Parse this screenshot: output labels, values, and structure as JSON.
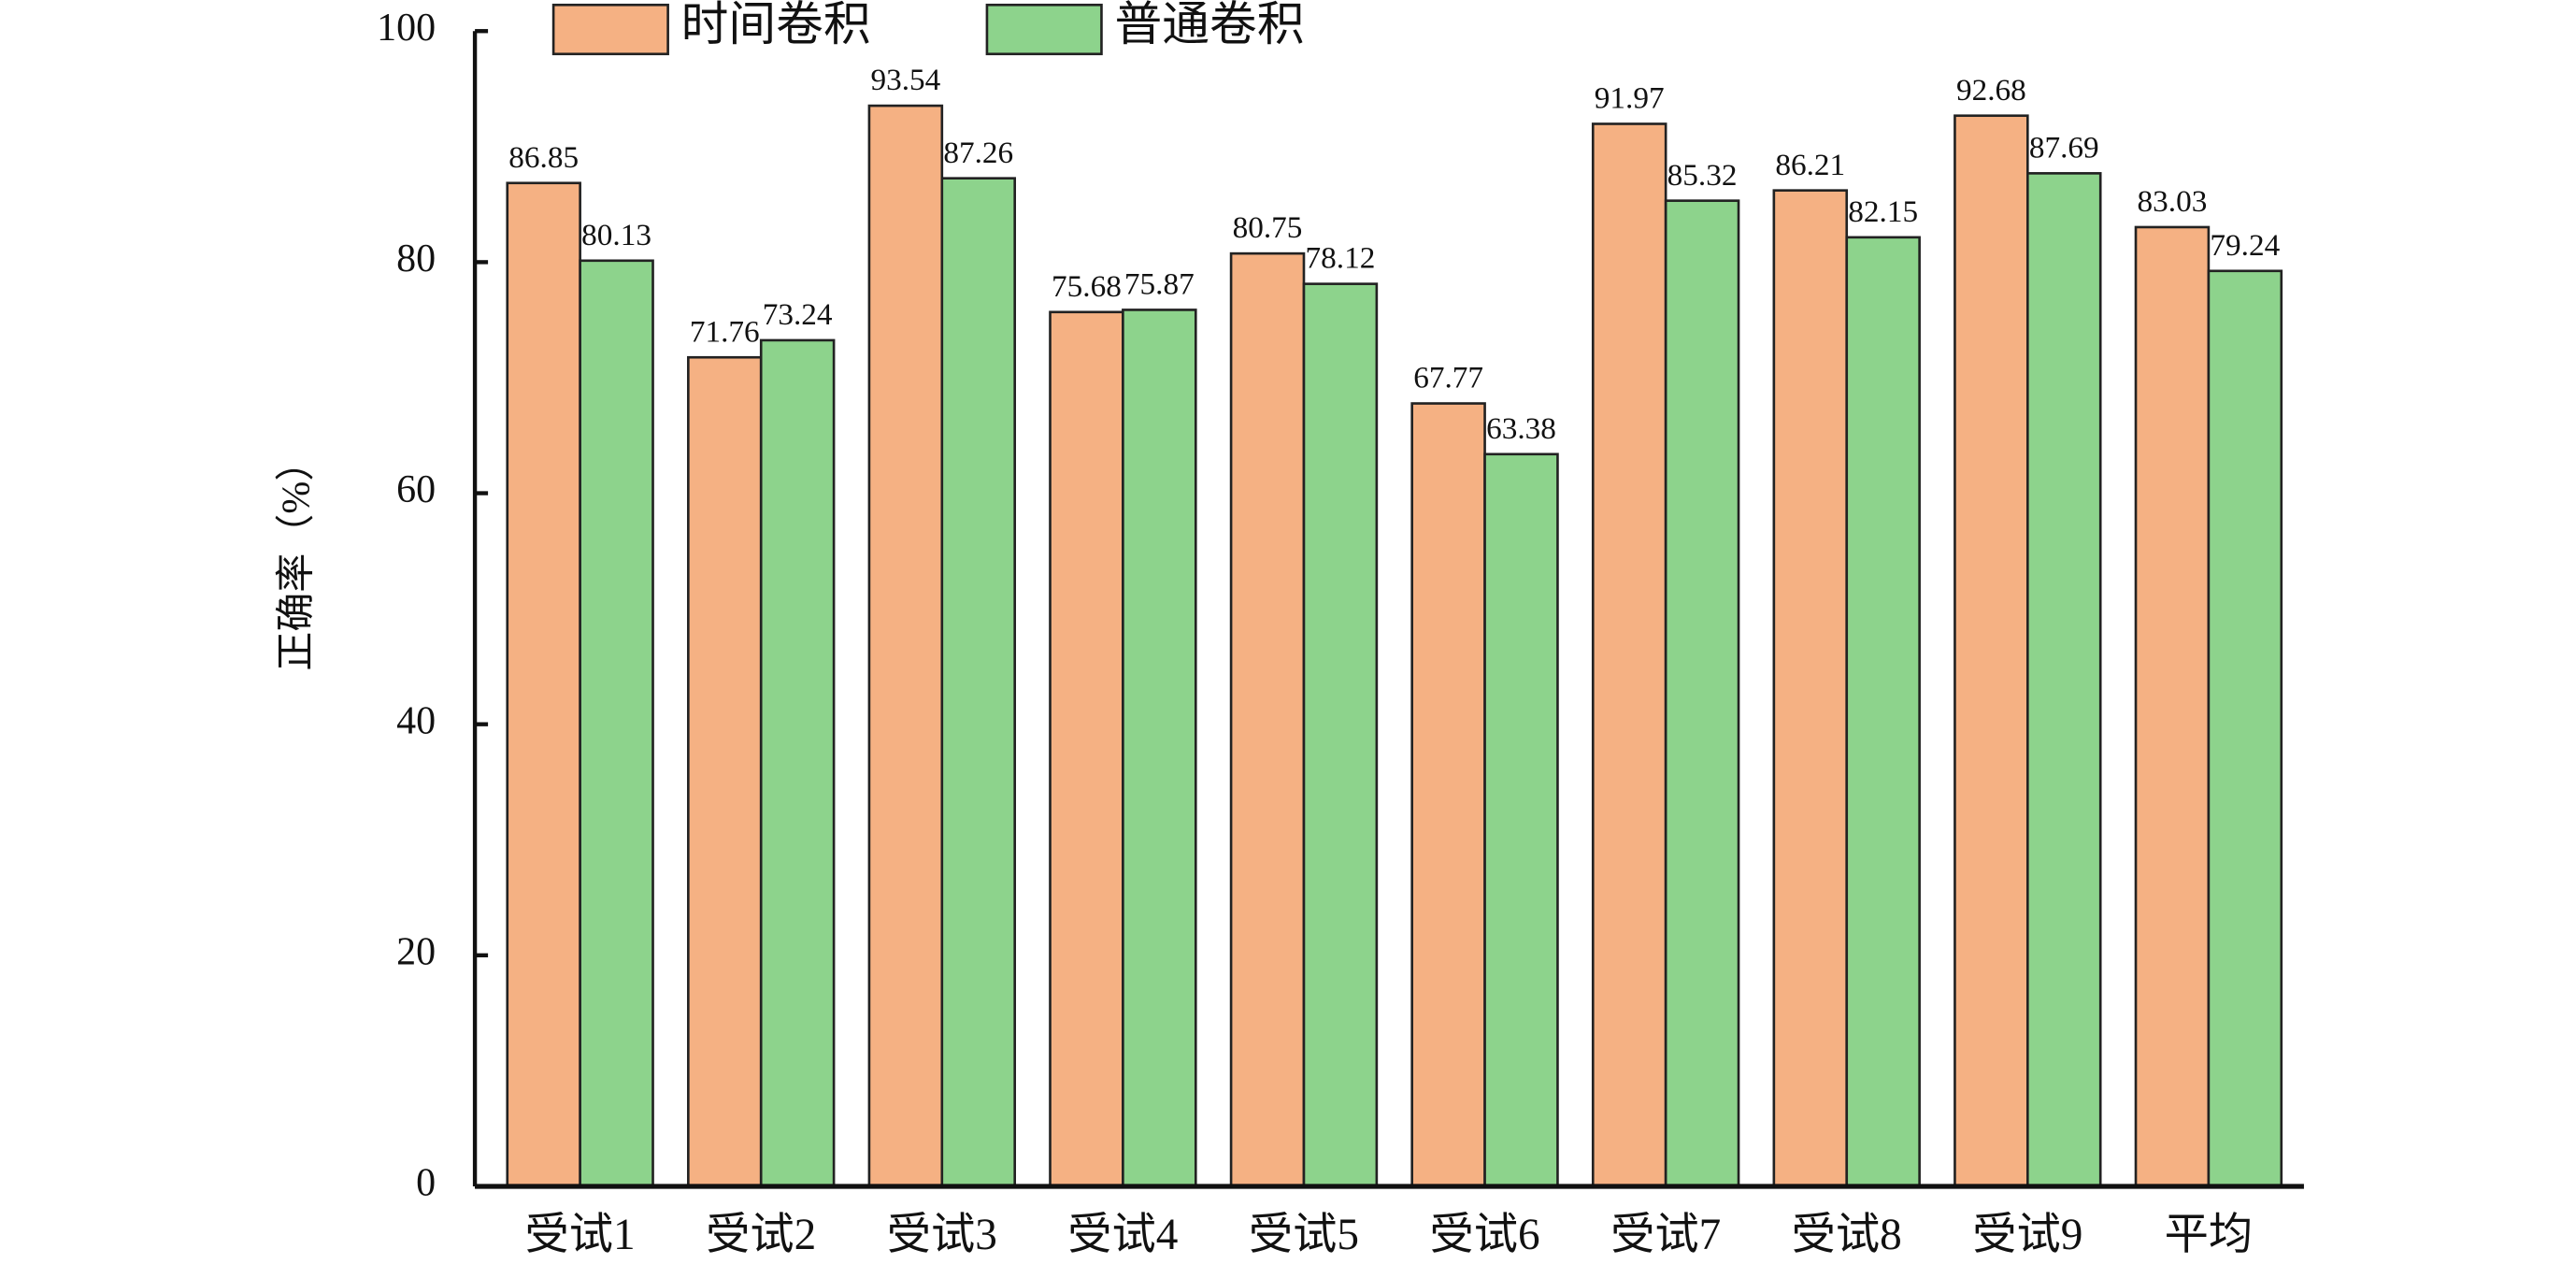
{
  "chart_data": {
    "type": "bar",
    "y_label": "正确率（%）",
    "categories": [
      "受试1",
      "受试2",
      "受试3",
      "受试4",
      "受试5",
      "受试6",
      "受试7",
      "受试8",
      "受试9",
      "平均"
    ],
    "series": [
      {
        "name": "时间卷积",
        "color": "#f5b183",
        "values": [
          86.85,
          71.76,
          93.54,
          75.68,
          80.75,
          67.77,
          91.97,
          86.21,
          92.68,
          83.03
        ]
      },
      {
        "name": "普通卷积",
        "color": "#8dd38c",
        "values": [
          80.13,
          73.24,
          87.26,
          75.87,
          78.12,
          63.38,
          85.32,
          82.15,
          87.69,
          79.24
        ]
      }
    ],
    "ylim": [
      0,
      100
    ],
    "yticks": [
      0,
      20,
      40,
      60,
      80,
      100
    ],
    "grid": false,
    "legend": "top"
  }
}
